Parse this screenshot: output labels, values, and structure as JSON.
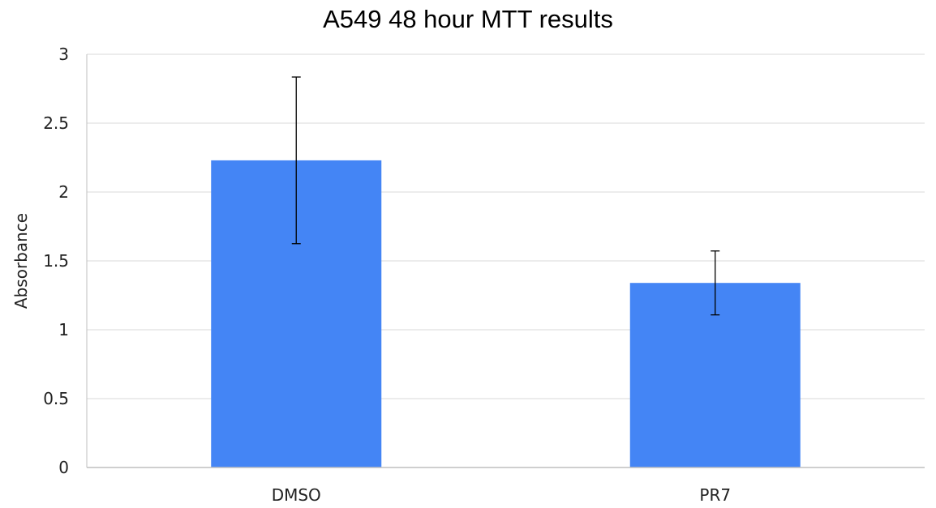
{
  "chart_data": {
    "type": "bar",
    "title": "A549 48 hour MTT results",
    "xlabel": "",
    "ylabel": "Absorbance",
    "categories": [
      "DMSO",
      "PR7"
    ],
    "values": [
      2.23,
      1.34
    ],
    "error": [
      0.605,
      0.232
    ],
    "yticks": [
      "0",
      "0.5",
      "1",
      "1.5",
      "2",
      "2.5",
      "3"
    ],
    "ylim": [
      0,
      3
    ],
    "grid": true,
    "legend": "none",
    "bar_color": "#4485F5",
    "grid_color": "#D9D9D9",
    "axis_color": "#BFBFBF",
    "error_bar_color": "#000000"
  }
}
